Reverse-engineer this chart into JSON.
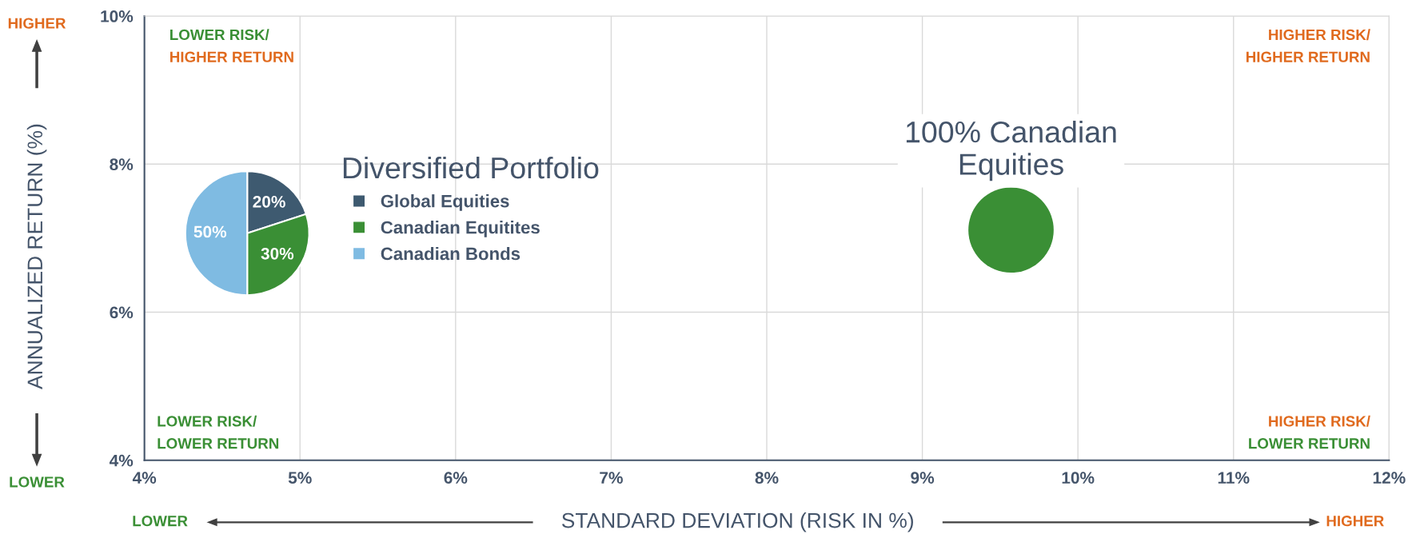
{
  "chart_data": [
    {
      "type": "pie",
      "legend_title": "Diversified Portfolio",
      "categories": [
        "Global Equities",
        "Canadian Equitites",
        "Canadian Bonds"
      ],
      "values": [
        20,
        30,
        50
      ],
      "colors": [
        "#3e5a70",
        "#3a8f35",
        "#7fbbe2"
      ],
      "value_labels": [
        "20%",
        "30%",
        "50%"
      ],
      "legend": "right"
    },
    {
      "type": "scatter",
      "xlabel": "STANDARD DEVIATION (RISK IN %)",
      "ylabel": "ANNUALIZED RETURN (%)",
      "x": [
        9.57
      ],
      "series": [
        {
          "color": "#3a8f35",
          "values": [
            7.11
          ]
        }
      ],
      "xlim": [
        4,
        12
      ],
      "ylim": [
        4,
        10
      ],
      "xticks": [
        {
          "value": 4,
          "label": "4%"
        },
        {
          "value": 5,
          "label": "5%"
        },
        {
          "value": 6,
          "label": "6%"
        },
        {
          "value": 7,
          "label": "7%"
        },
        {
          "value": 8,
          "label": "8%"
        },
        {
          "value": 9,
          "label": "9%"
        },
        {
          "value": 10,
          "label": "10%"
        },
        {
          "value": 11,
          "label": "11%"
        },
        {
          "value": 12,
          "label": "12%"
        }
      ],
      "yticks": [
        {
          "value": 4,
          "label": "4%"
        },
        {
          "value": 6,
          "label": "6%"
        },
        {
          "value": 8,
          "label": "8%"
        },
        {
          "value": 10,
          "label": "10%"
        }
      ],
      "grid": true,
      "marker": "circle",
      "annotations": [
        {
          "text": "100% Canadian\nEquities",
          "x": 9.57,
          "y": 7.11
        },
        "LOWER RISK/",
        "HIGHER RETURN",
        "HIGHER RISK/",
        "HIGHER RETURN",
        "LOWER RISK/",
        "LOWER RETURN",
        "HIGHER RISK/",
        "LOWER RETURN",
        "HIGHER",
        "LOWER",
        "LOWER",
        "HIGHER"
      ]
    }
  ]
}
